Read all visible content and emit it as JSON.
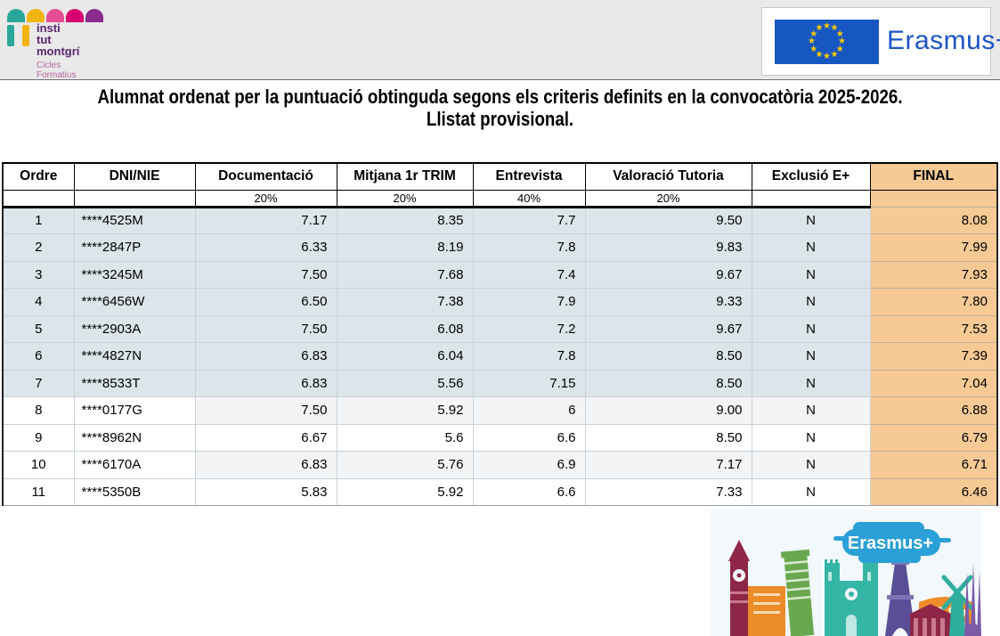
{
  "header": {
    "logo": {
      "line1": "insti",
      "line2": "tut",
      "line3": "montgrí",
      "sub1": "Cicles",
      "sub2": "Formatius"
    },
    "erasmus_logo_text": "Erasmus+"
  },
  "title": {
    "line1": "Alumnat ordenat per la puntuació obtinguda segons els criteris definits en la convocatòria 2025-2026.",
    "line2": "Llistat provisional."
  },
  "table": {
    "columns": [
      "Ordre",
      "DNI/NIE",
      "Documentació",
      "Mitjana 1r TRIM",
      "Entrevista",
      "Valoració Tutoria",
      "Exclusió E+",
      "FINAL"
    ],
    "weights": [
      "",
      "",
      "20%",
      "20%",
      "40%",
      "20%",
      "",
      ""
    ],
    "rows": [
      {
        "ordre": "1",
        "dni": "****4525M",
        "doc": "7.17",
        "mitjana": "8.35",
        "entrevista": "7.7",
        "valoracio": "9.50",
        "exclusio": "N",
        "final": "8.08",
        "highlight": true
      },
      {
        "ordre": "2",
        "dni": "****2847P",
        "doc": "6.33",
        "mitjana": "8.19",
        "entrevista": "7.8",
        "valoracio": "9.83",
        "exclusio": "N",
        "final": "7.99",
        "highlight": true
      },
      {
        "ordre": "3",
        "dni": "****3245M",
        "doc": "7.50",
        "mitjana": "7.68",
        "entrevista": "7.4",
        "valoracio": "9.67",
        "exclusio": "N",
        "final": "7.93",
        "highlight": true
      },
      {
        "ordre": "4",
        "dni": "****6456W",
        "doc": "6.50",
        "mitjana": "7.38",
        "entrevista": "7.9",
        "valoracio": "9.33",
        "exclusio": "N",
        "final": "7.80",
        "highlight": true
      },
      {
        "ordre": "5",
        "dni": "****2903A",
        "doc": "7.50",
        "mitjana": "6.08",
        "entrevista": "7.2",
        "valoracio": "9.67",
        "exclusio": "N",
        "final": "7.53",
        "highlight": true
      },
      {
        "ordre": "6",
        "dni": "****4827N",
        "doc": "6.83",
        "mitjana": "6.04",
        "entrevista": "7.8",
        "valoracio": "8.50",
        "exclusio": "N",
        "final": "7.39",
        "highlight": true
      },
      {
        "ordre": "7",
        "dni": "****8533T",
        "doc": "6.83",
        "mitjana": "5.56",
        "entrevista": "7.15",
        "valoracio": "8.50",
        "exclusio": "N",
        "final": "7.04",
        "highlight": true
      },
      {
        "ordre": "8",
        "dni": "****0177G",
        "doc": "7.50",
        "mitjana": "5.92",
        "entrevista": "6",
        "valoracio": "9.00",
        "exclusio": "N",
        "final": "6.88",
        "highlight": false
      },
      {
        "ordre": "9",
        "dni": "****8962N",
        "doc": "6.67",
        "mitjana": "5.6",
        "entrevista": "6.6",
        "valoracio": "8.50",
        "exclusio": "N",
        "final": "6.79",
        "highlight": false
      },
      {
        "ordre": "10",
        "dni": "****6170A",
        "doc": "6.83",
        "mitjana": "5.76",
        "entrevista": "6.9",
        "valoracio": "7.17",
        "exclusio": "N",
        "final": "6.71",
        "highlight": false
      },
      {
        "ordre": "11",
        "dni": "****5350B",
        "doc": "5.83",
        "mitjana": "5.92",
        "entrevista": "6.6",
        "valoracio": "7.33",
        "exclusio": "N",
        "final": "6.46",
        "highlight": false
      }
    ]
  },
  "footer": {
    "illustration_label": "Erasmus+"
  },
  "icons": {
    "star_glyph": "★"
  },
  "colors": {
    "highlight_row": "#dbe5ea",
    "final_column": "#f6c995",
    "stripe_row": "#f2f4f5",
    "eu_blue": "#1757c2",
    "eu_star_yellow": "#ffcc00",
    "erasmus_text_blue": "#1d55c6",
    "logo_purple": "#5b2470",
    "logo_pink": "#d6006e",
    "logo_teal": "#2aa79b",
    "logo_yellow": "#f0b510"
  }
}
